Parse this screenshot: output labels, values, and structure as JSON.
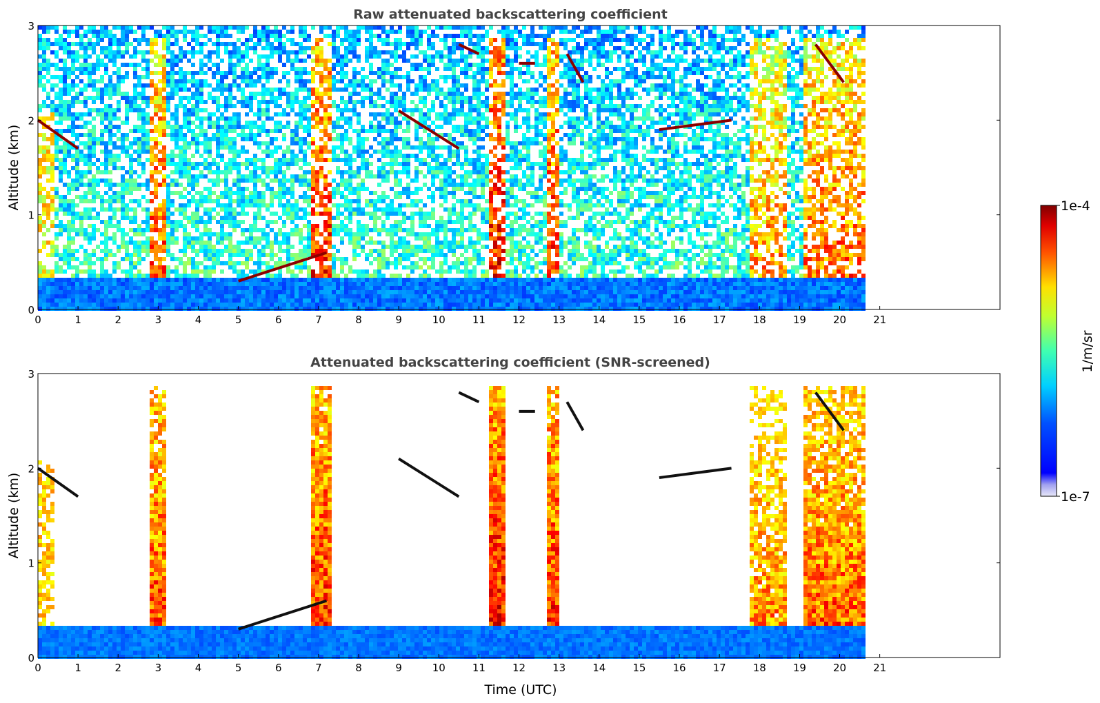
{
  "chart_data": [
    {
      "type": "heatmap",
      "title": "Raw attenuated backscattering coefficient",
      "xlabel": "",
      "ylabel": "Altitude (km)",
      "xlim": [
        0,
        24
      ],
      "ylim": [
        0,
        3
      ],
      "xticks": [
        "0",
        "1",
        "2",
        "3",
        "4",
        "5",
        "6",
        "7",
        "8",
        "9",
        "10",
        "11",
        "12",
        "13",
        "14",
        "15",
        "16",
        "17",
        "18",
        "19",
        "20",
        "21"
      ],
      "yticks": [
        "0",
        "1",
        "2",
        "3"
      ],
      "data_end_time": 20.6,
      "screened": false
    },
    {
      "type": "heatmap",
      "title": "Attenuated backscattering coefficient (SNR-screened)",
      "xlabel": "Time (UTC)",
      "ylabel": "Altitude (km)",
      "xlim": [
        0,
        24
      ],
      "ylim": [
        0,
        3
      ],
      "xticks": [
        "0",
        "1",
        "2",
        "3",
        "4",
        "5",
        "6",
        "7",
        "8",
        "9",
        "10",
        "11",
        "12",
        "13",
        "14",
        "15",
        "16",
        "17",
        "18",
        "19",
        "20",
        "21"
      ],
      "yticks": [
        "0",
        "1",
        "2",
        "3"
      ],
      "data_end_time": 20.6,
      "screened": true
    }
  ],
  "colorbar": {
    "label": "1/m/sr",
    "min_label": "1e-7",
    "max_label": "1e-4",
    "scale": "log",
    "colormap": "jet",
    "under_color": "#e8e8f8"
  }
}
